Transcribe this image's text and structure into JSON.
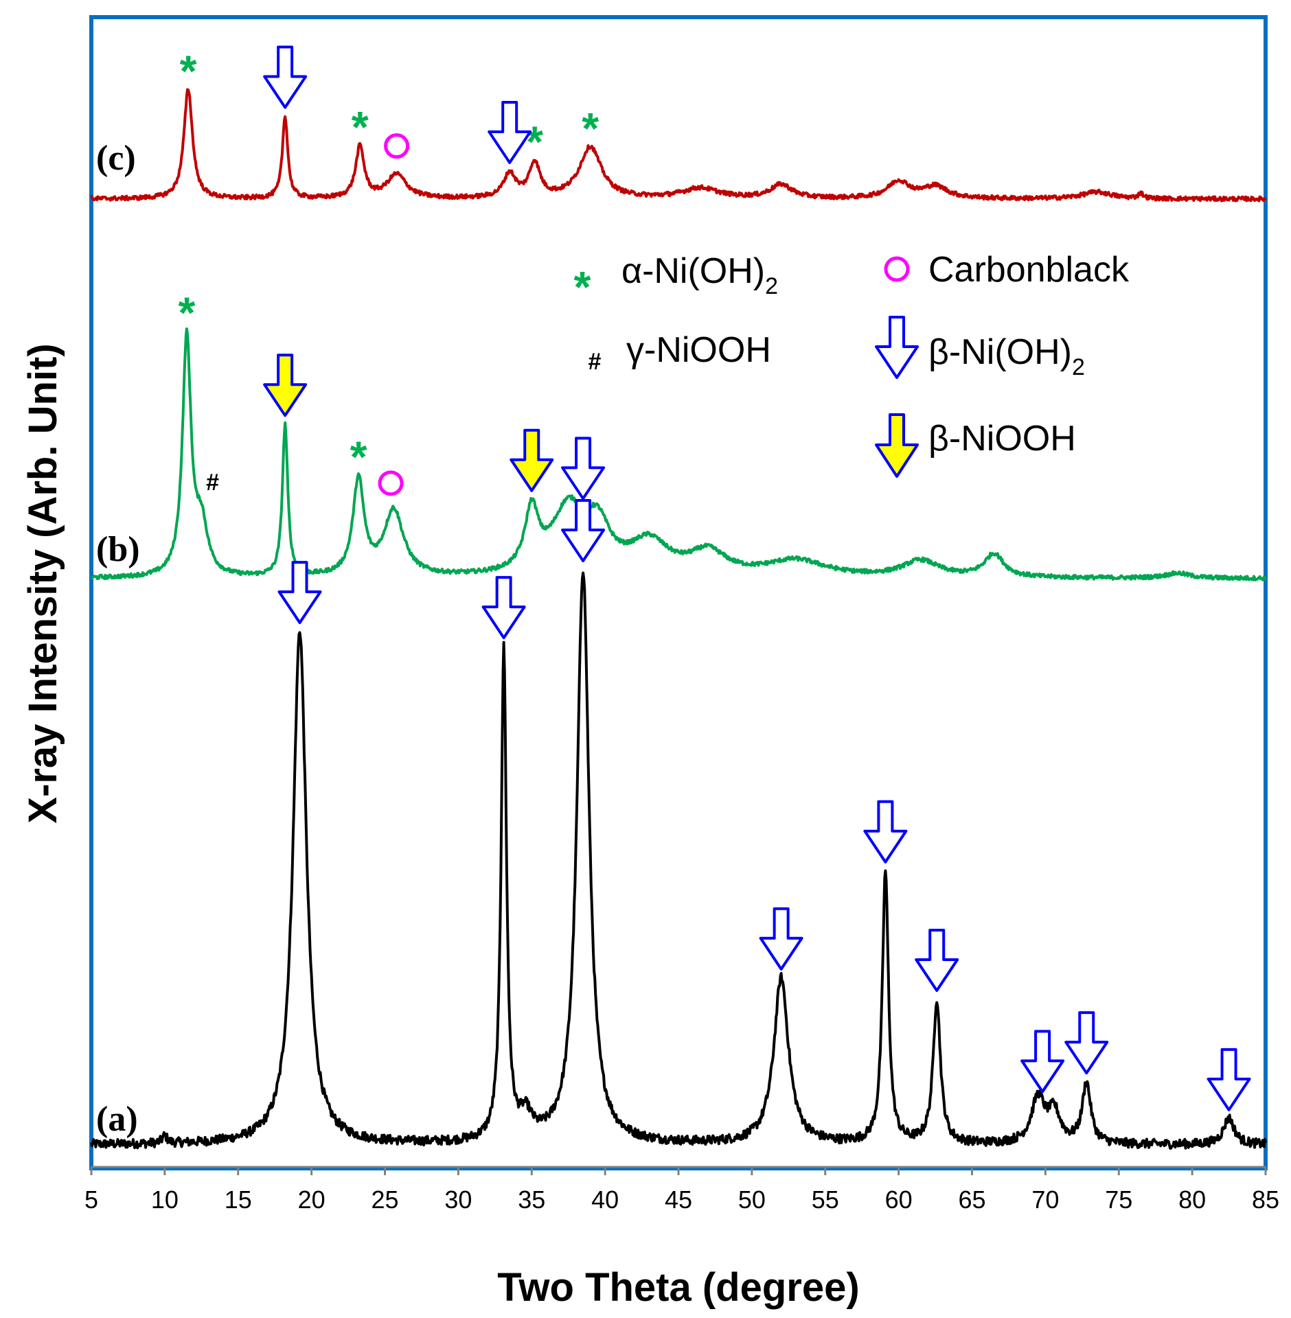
{
  "chart_data": {
    "type": "line",
    "xlabel": "Two Theta (degree)",
    "ylabel": "X-ray Intensity (Arb. Unit)",
    "xlim": [
      5,
      85
    ],
    "xticks": [
      "5",
      "10",
      "15",
      "20",
      "25",
      "30",
      "35",
      "40",
      "45",
      "50",
      "55",
      "60",
      "65",
      "70",
      "75",
      "80",
      "85"
    ],
    "grid": false,
    "series": [
      {
        "name": "(a)",
        "color": "#000000",
        "baseline": 0,
        "peaks": [
          {
            "x": 10.0,
            "h": 0.01,
            "w": 0.2
          },
          {
            "x": 19.2,
            "h": 0.68,
            "w": 0.55
          },
          {
            "x": 33.1,
            "h": 0.65,
            "w": 0.22
          },
          {
            "x": 34.6,
            "h": 0.03,
            "w": 0.5
          },
          {
            "x": 38.5,
            "h": 0.76,
            "w": 0.5
          },
          {
            "x": 52.0,
            "h": 0.22,
            "w": 0.6
          },
          {
            "x": 59.1,
            "h": 0.36,
            "w": 0.25
          },
          {
            "x": 62.6,
            "h": 0.19,
            "w": 0.3
          },
          {
            "x": 69.5,
            "h": 0.06,
            "w": 0.55
          },
          {
            "x": 70.6,
            "h": 0.04,
            "w": 0.5
          },
          {
            "x": 72.8,
            "h": 0.08,
            "w": 0.35
          },
          {
            "x": 82.5,
            "h": 0.035,
            "w": 0.45
          }
        ]
      },
      {
        "name": "(b)",
        "color": "#00a651",
        "baseline": 0,
        "peaks": [
          {
            "x": 11.5,
            "h": 0.72,
            "w": 0.35
          },
          {
            "x": 12.5,
            "h": 0.15,
            "w": 0.5
          },
          {
            "x": 18.2,
            "h": 0.46,
            "w": 0.22
          },
          {
            "x": 23.2,
            "h": 0.29,
            "w": 0.45
          },
          {
            "x": 25.6,
            "h": 0.2,
            "w": 0.8
          },
          {
            "x": 35.0,
            "h": 0.18,
            "w": 0.55
          },
          {
            "x": 37.5,
            "h": 0.2,
            "w": 1.4
          },
          {
            "x": 39.5,
            "h": 0.13,
            "w": 1.0
          },
          {
            "x": 43.0,
            "h": 0.1,
            "w": 1.6
          },
          {
            "x": 47.0,
            "h": 0.07,
            "w": 1.5
          },
          {
            "x": 53.0,
            "h": 0.05,
            "w": 2.5
          },
          {
            "x": 61.5,
            "h": 0.05,
            "w": 1.5
          },
          {
            "x": 66.5,
            "h": 0.07,
            "w": 0.8
          },
          {
            "x": 79.0,
            "h": 0.015,
            "w": 1.0
          }
        ]
      },
      {
        "name": "(c)",
        "color": "#c00000",
        "baseline": 0,
        "peaks": [
          {
            "x": 11.6,
            "h": 0.32,
            "w": 0.35
          },
          {
            "x": 18.2,
            "h": 0.24,
            "w": 0.22
          },
          {
            "x": 23.3,
            "h": 0.15,
            "w": 0.35
          },
          {
            "x": 25.8,
            "h": 0.07,
            "w": 0.8
          },
          {
            "x": 33.5,
            "h": 0.07,
            "w": 0.5
          },
          {
            "x": 35.2,
            "h": 0.1,
            "w": 0.45
          },
          {
            "x": 39.0,
            "h": 0.15,
            "w": 0.9
          },
          {
            "x": 46.5,
            "h": 0.03,
            "w": 1.5
          },
          {
            "x": 52.0,
            "h": 0.04,
            "w": 0.9
          },
          {
            "x": 60.0,
            "h": 0.05,
            "w": 0.9
          },
          {
            "x": 62.5,
            "h": 0.035,
            "w": 1.0
          },
          {
            "x": 73.5,
            "h": 0.02,
            "w": 1.2
          },
          {
            "x": 76.5,
            "h": 0.015,
            "w": 0.2
          }
        ]
      }
    ],
    "annotations": [
      {
        "series": "(a)",
        "symbol": "beta-NiOH2-arrow",
        "x": [
          19.2,
          33.1,
          38.5,
          52.0,
          59.1,
          62.6,
          69.8,
          72.8,
          82.5
        ]
      },
      {
        "series": "(b)",
        "symbol": "alpha-star",
        "x": [
          11.5,
          23.2
        ]
      },
      {
        "series": "(b)",
        "symbol": "gamma-hash",
        "x": [
          12.7
        ]
      },
      {
        "series": "(b)",
        "symbol": "beta-NiOOH-arrow",
        "x": [
          18.2,
          35.0
        ]
      },
      {
        "series": "(b)",
        "symbol": "beta-NiOH2-arrow",
        "x": [
          38.5
        ]
      },
      {
        "series": "(b)",
        "symbol": "carbon-circle",
        "x": [
          25.4
        ]
      },
      {
        "series": "(c)",
        "symbol": "alpha-star",
        "x": [
          11.6,
          23.3,
          35.2,
          39.0
        ]
      },
      {
        "series": "(c)",
        "symbol": "beta-NiOH2-arrow",
        "x": [
          18.2,
          33.5
        ]
      },
      {
        "series": "(c)",
        "symbol": "carbon-circle",
        "x": [
          25.8
        ]
      }
    ],
    "legend": {
      "placement": "top-right",
      "items": [
        {
          "symbol": "alpha-star",
          "label": "α-Ni(OH)",
          "sub": "2"
        },
        {
          "symbol": "carbon-circle",
          "label": "Carbonblack",
          "sub": ""
        },
        {
          "symbol": "gamma-hash",
          "label": "γ-NiOOH",
          "sub": ""
        },
        {
          "symbol": "beta-NiOH2-arrow",
          "label": "β-Ni(OH)",
          "sub": "2"
        },
        {
          "symbol": "beta-NiOOH-arrow",
          "label": "β-NiOOH",
          "sub": ""
        }
      ]
    },
    "colors": {
      "frame": "#0070c0",
      "open_arrow": "#0000ff",
      "filled_arrow_fill": "#ffff00",
      "star": "#00b050",
      "circle": "#ff00ff"
    }
  }
}
